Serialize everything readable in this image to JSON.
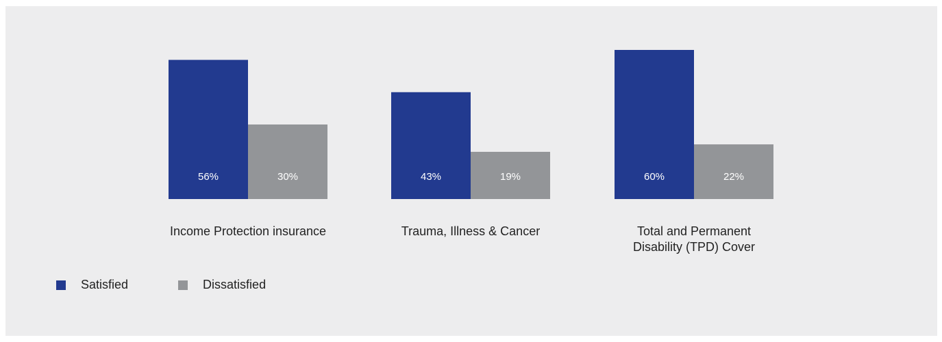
{
  "chart_data": {
    "type": "bar",
    "categories": [
      [
        "Income Protection insurance"
      ],
      [
        "Trauma, Illness & Cancer"
      ],
      [
        "Total and Permanent",
        "Disability (TPD) Cover"
      ]
    ],
    "series": [
      {
        "name": "Satisfied",
        "values": [
          56,
          43,
          60
        ],
        "labels": [
          "56%",
          "43%",
          "60%"
        ],
        "color": "#223a8f"
      },
      {
        "name": "Dissatisfied",
        "values": [
          30,
          19,
          22
        ],
        "labels": [
          "30%",
          "19%",
          "22%"
        ],
        "color": "#939598"
      }
    ],
    "unit": "%",
    "legend_position": "bottom-left",
    "grid": false,
    "axes_visible": false
  },
  "legend": {
    "items": [
      {
        "label": "Satisfied",
        "color": "#223a8f"
      },
      {
        "label": "Dissatisfied",
        "color": "#939598"
      }
    ]
  },
  "colors": {
    "background": "#ededee",
    "text": "#222222",
    "bar_label": "#ffffff"
  }
}
